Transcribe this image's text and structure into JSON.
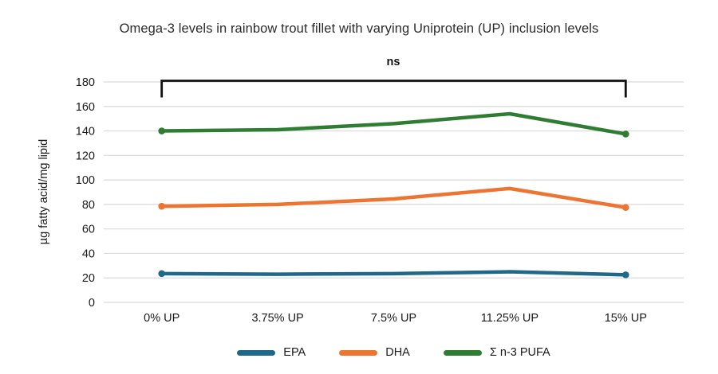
{
  "chart_data": {
    "type": "line",
    "title": "Omega-3 levels in rainbow trout fillet with varying Uniprotein (UP) inclusion levels",
    "xlabel": "",
    "ylabel": "µg fatty acid/mg lipid",
    "categories": [
      "0% UP",
      "3.75% UP",
      "7.5% UP",
      "11.25% UP",
      "15% UP"
    ],
    "series": [
      {
        "name": "EPA",
        "color": "#20688A",
        "values": [
          23.5,
          23,
          23.5,
          25,
          22.5
        ]
      },
      {
        "name": "DHA",
        "color": "#ED7431",
        "values": [
          78.5,
          80,
          84.5,
          93,
          77.5
        ]
      },
      {
        "name": "Σ n-3 PUFA",
        "color": "#2E7D33",
        "values": [
          140,
          141,
          146,
          154,
          137.5
        ]
      }
    ],
    "ylim": [
      0,
      180
    ],
    "ytick_step": 20,
    "grid": "horizontal",
    "gridline_color": "#d9d9d9",
    "legend_position": "bottom",
    "annotation": {
      "label": "ns",
      "span": [
        "0% UP",
        "15% UP"
      ],
      "color": "#111111"
    }
  }
}
